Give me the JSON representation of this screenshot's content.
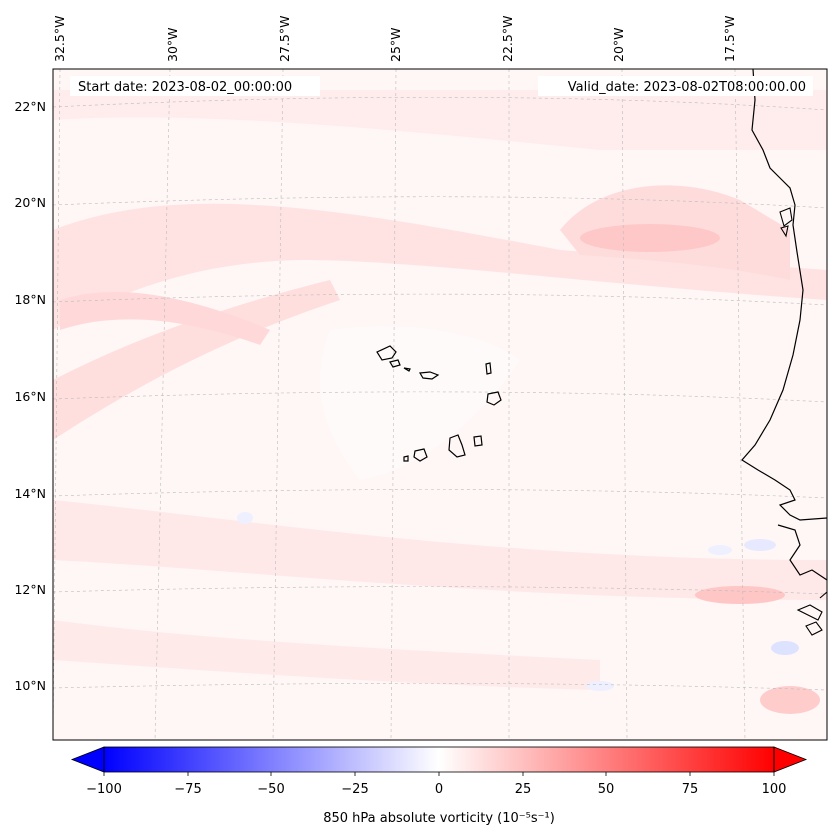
{
  "map": {
    "start_date_text": "Start date: 2023-08-02_00:00:00",
    "valid_date_text": "Valid_date: 2023-08-02T08:00:00.00",
    "lon_labels": [
      "32.5°W",
      "30°W",
      "27.5°W",
      "25°W",
      "22.5°W",
      "20°W",
      "17.5°W"
    ],
    "lat_labels": [
      "22°N",
      "20°N",
      "18°N",
      "16°N",
      "14°N",
      "12°N",
      "10°N"
    ],
    "colors": {
      "land_outline": "#000000",
      "gridline": "#bbbbbb",
      "negative": "#0000ff",
      "neutral": "#ffffff",
      "positive": "#ff0000"
    }
  },
  "colorbar": {
    "label": "850 hPa absolute vorticity (10⁻⁵s⁻¹)",
    "ticks": [
      "−100",
      "−75",
      "−50",
      "−25",
      "0",
      "25",
      "50",
      "75",
      "100"
    ],
    "min": -100,
    "max": 100,
    "extend": "both"
  },
  "chart_data": {
    "type": "heatmap",
    "title": "",
    "variable": "850 hPa absolute vorticity",
    "units": "10⁻⁵s⁻¹",
    "lon_range": [
      -33.0,
      -15.0
    ],
    "lat_range": [
      8.9,
      22.8
    ],
    "color_scale": {
      "min": -100,
      "max": 100,
      "center": 0,
      "colormap": "bwr"
    },
    "features": [
      {
        "lon": -20.0,
        "lat": 19.2,
        "value": 20
      },
      {
        "lon": -30.0,
        "lat": 19.5,
        "value": 10
      },
      {
        "lon": -24.0,
        "lat": 17.5,
        "value": 5
      },
      {
        "lon": -32.0,
        "lat": 16.0,
        "value": 10
      },
      {
        "lon": -26.0,
        "lat": 13.0,
        "value": 6
      },
      {
        "lon": -17.5,
        "lat": 11.8,
        "value": 25
      },
      {
        "lon": -16.0,
        "lat": 10.5,
        "value": 25
      },
      {
        "lon": -16.0,
        "lat": 12.8,
        "value": -10
      },
      {
        "lon": -16.5,
        "lat": 10.8,
        "value": -15
      }
    ]
  }
}
